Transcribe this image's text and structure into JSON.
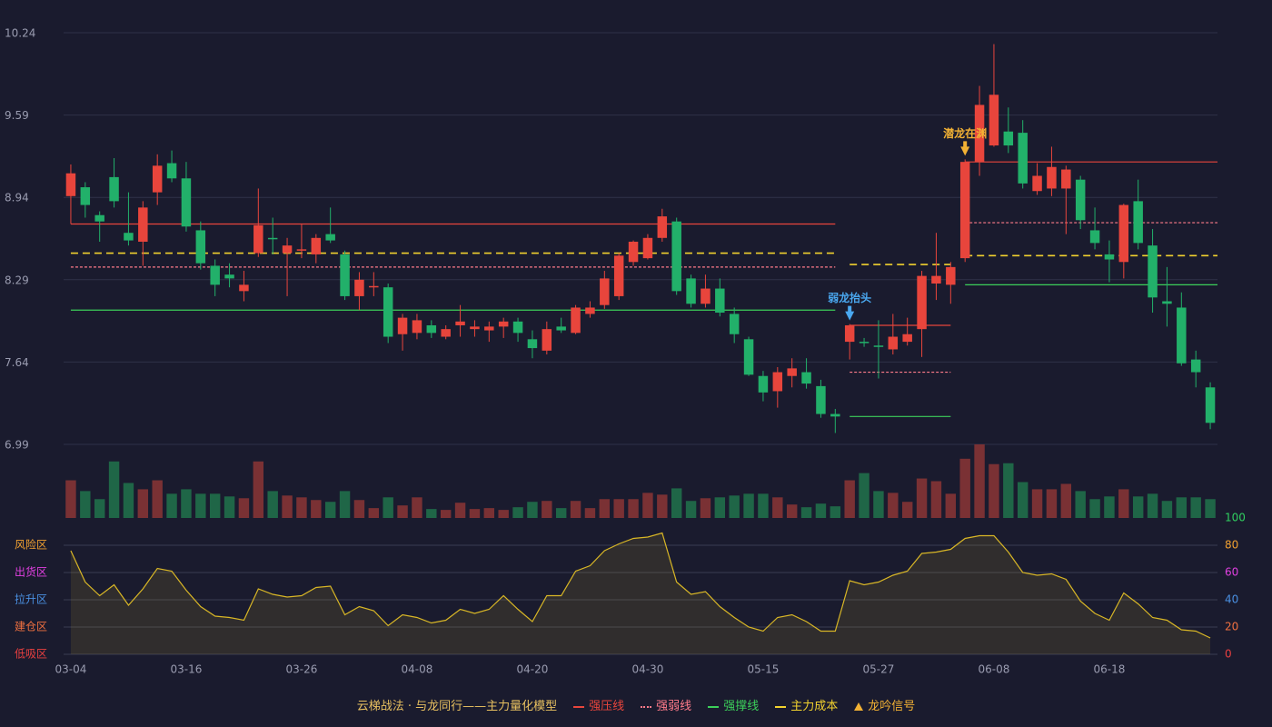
{
  "chart_data": {
    "type": "candlestick",
    "categories": [
      "03-04",
      null,
      null,
      null,
      null,
      null,
      null,
      null,
      "03-16",
      null,
      null,
      null,
      null,
      null,
      null,
      null,
      "03-26",
      null,
      null,
      null,
      null,
      null,
      null,
      null,
      "04-08",
      null,
      null,
      null,
      null,
      null,
      null,
      null,
      "04-20",
      null,
      null,
      null,
      null,
      null,
      null,
      null,
      "04-30",
      null,
      null,
      null,
      null,
      null,
      null,
      null,
      "05-15",
      null,
      null,
      null,
      null,
      null,
      null,
      null,
      "05-27",
      null,
      null,
      null,
      null,
      null,
      null,
      null,
      "06-08",
      null,
      null,
      null,
      null,
      null,
      null,
      null,
      "06-18",
      null,
      null,
      null,
      null,
      null,
      null,
      null
    ],
    "open": [
      8.95,
      9.02,
      8.8,
      9.1,
      8.66,
      8.59,
      8.98,
      9.21,
      9.09,
      8.68,
      8.4,
      8.33,
      8.2,
      8.5,
      8.62,
      8.5,
      8.52,
      8.49,
      8.65,
      8.49,
      8.16,
      8.23,
      8.23,
      7.86,
      7.87,
      7.93,
      7.84,
      7.93,
      7.9,
      7.89,
      7.92,
      7.96,
      7.82,
      7.73,
      7.92,
      7.87,
      8.02,
      8.09,
      8.16,
      8.43,
      8.46,
      8.62,
      8.75,
      8.3,
      8.1,
      8.22,
      8.02,
      7.82,
      7.53,
      7.41,
      7.53,
      7.56,
      7.45,
      7.23,
      7.8,
      7.8,
      7.77,
      7.74,
      7.8,
      7.9,
      8.26,
      8.25,
      8.46,
      9.22,
      9.35,
      9.46,
      9.45,
      8.99,
      9.01,
      9.01,
      9.08,
      8.68,
      8.49,
      8.43,
      8.91,
      8.56,
      8.12,
      8.07,
      7.66,
      7.44
    ],
    "high": [
      9.2,
      9.06,
      8.83,
      9.25,
      8.98,
      8.91,
      9.28,
      9.31,
      9.22,
      8.75,
      8.45,
      8.42,
      8.36,
      9.01,
      8.78,
      8.62,
      8.73,
      8.65,
      8.86,
      8.52,
      8.35,
      8.35,
      8.26,
      8.02,
      8.02,
      7.97,
      7.93,
      8.09,
      7.97,
      7.96,
      7.99,
      7.99,
      7.89,
      7.96,
      7.99,
      8.09,
      8.12,
      8.36,
      8.5,
      8.6,
      8.65,
      8.85,
      8.78,
      8.33,
      8.33,
      8.3,
      8.07,
      7.84,
      7.57,
      7.6,
      7.67,
      7.67,
      7.5,
      7.27,
      7.94,
      7.83,
      7.97,
      8.02,
      7.99,
      8.36,
      8.66,
      8.43,
      9.24,
      9.82,
      10.15,
      9.65,
      9.55,
      9.21,
      9.34,
      9.19,
      9.11,
      8.86,
      8.6,
      8.89,
      9.08,
      8.69,
      8.39,
      8.19,
      7.73,
      7.48
    ],
    "low": [
      8.73,
      8.78,
      8.59,
      8.86,
      8.56,
      8.4,
      8.88,
      9.06,
      8.67,
      8.37,
      8.16,
      8.23,
      8.12,
      8.47,
      8.49,
      8.16,
      8.46,
      8.42,
      8.58,
      8.13,
      8.05,
      8.16,
      7.79,
      7.73,
      7.82,
      7.83,
      7.82,
      7.84,
      7.84,
      7.8,
      7.83,
      7.8,
      7.67,
      7.7,
      7.87,
      7.86,
      7.99,
      8.06,
      8.13,
      8.4,
      8.45,
      8.59,
      8.17,
      8.07,
      8.07,
      8.0,
      7.79,
      7.53,
      7.33,
      7.28,
      7.44,
      7.43,
      7.2,
      7.08,
      7.66,
      7.76,
      7.51,
      7.7,
      7.77,
      7.68,
      8.13,
      8.1,
      8.43,
      9.11,
      9.34,
      9.29,
      9.01,
      8.96,
      8.95,
      8.65,
      8.69,
      8.53,
      8.27,
      8.3,
      8.53,
      8.03,
      7.92,
      7.61,
      7.44,
      7.11
    ],
    "close": [
      9.13,
      8.88,
      8.75,
      8.91,
      8.6,
      8.86,
      9.19,
      9.09,
      8.71,
      8.42,
      8.25,
      8.3,
      8.25,
      8.72,
      8.61,
      8.56,
      8.53,
      8.62,
      8.6,
      8.16,
      8.29,
      8.24,
      7.84,
      7.99,
      7.97,
      7.87,
      7.9,
      7.96,
      7.92,
      7.92,
      7.96,
      7.87,
      7.75,
      7.9,
      7.89,
      8.07,
      8.07,
      8.3,
      8.48,
      8.59,
      8.62,
      8.79,
      8.2,
      8.1,
      8.22,
      8.03,
      7.86,
      7.54,
      7.4,
      7.56,
      7.59,
      7.47,
      7.23,
      7.21,
      7.93,
      7.79,
      7.76,
      7.84,
      7.86,
      8.32,
      8.32,
      8.39,
      9.22,
      9.67,
      9.75,
      9.35,
      9.05,
      9.11,
      9.18,
      9.16,
      8.76,
      8.58,
      8.45,
      8.88,
      8.58,
      8.15,
      8.1,
      7.63,
      7.56,
      7.16
    ],
    "volume": [
      42,
      30,
      21,
      63,
      39,
      32,
      42,
      27,
      32,
      27,
      27,
      24,
      22,
      63,
      30,
      25,
      23,
      20,
      18,
      30,
      20,
      11,
      23,
      14,
      23,
      10,
      9,
      17,
      10,
      11,
      9,
      12,
      18,
      19,
      11,
      19,
      11,
      21,
      21,
      21,
      28,
      26,
      33,
      19,
      22,
      23,
      25,
      27,
      27,
      23,
      15,
      12,
      16,
      13,
      42,
      50,
      30,
      28,
      18,
      44,
      41,
      27,
      66,
      82,
      60,
      61,
      40,
      32,
      32,
      38,
      30,
      21,
      24,
      32,
      24,
      27,
      19,
      23,
      23,
      21
    ],
    "indicator": [
      76,
      53,
      43,
      51,
      36,
      48,
      63,
      61,
      47,
      35,
      28,
      27,
      25,
      48,
      44,
      42,
      43,
      49,
      50,
      29,
      35,
      32,
      21,
      29,
      27,
      23,
      25,
      33,
      30,
      33,
      43,
      33,
      24,
      43,
      43,
      61,
      65,
      76,
      81,
      85,
      86,
      89,
      53,
      44,
      46,
      35,
      27,
      20,
      17,
      27,
      29,
      24,
      17,
      17,
      54,
      51,
      53,
      58,
      61,
      74,
      75,
      77,
      85,
      87,
      87,
      75,
      60,
      58,
      59,
      55,
      39,
      30,
      25,
      45,
      37,
      27,
      25,
      18,
      17,
      12
    ],
    "up_color": "#e8453c",
    "down_color": "#22b06a",
    "indicator_color": "#d9b726",
    "ylim": [
      6.99,
      10.24
    ],
    "yticks": [
      6.99,
      7.64,
      8.29,
      8.94,
      9.59,
      10.24
    ],
    "y2lim": [
      0,
      100
    ],
    "y2ticks": [
      0,
      20,
      40,
      60,
      80,
      100
    ],
    "y2tick_colors": [
      "#e84040",
      "#f07040",
      "#4a90e2",
      "#e040e0",
      "#f0a030",
      "#30d060"
    ],
    "zones": [
      {
        "value": 80,
        "label": "风险区",
        "color": "#f0a030"
      },
      {
        "value": 60,
        "label": "出货区",
        "color": "#e040e0"
      },
      {
        "value": 40,
        "label": "拉升区",
        "color": "#4a90e2"
      },
      {
        "value": 20,
        "label": "建仓区",
        "color": "#f07040"
      },
      {
        "value": 0,
        "label": "低吸区",
        "color": "#e84040"
      }
    ],
    "legend_title": "云梯战法 · 与龙同行——主力量化模型",
    "levels": [
      {
        "name": "强压线",
        "color": "#e8453c",
        "style": "solid",
        "segments": [
          {
            "start": 0,
            "end": 53,
            "value": 8.73
          },
          {
            "start": 54,
            "end": 61,
            "value": 7.93
          },
          {
            "start": 62,
            "end": 79,
            "value": 9.22
          }
        ]
      },
      {
        "name": "强弱线",
        "color": "#ff7b8a",
        "style": "dotted",
        "segments": [
          {
            "start": 0,
            "end": 53,
            "value": 8.39
          },
          {
            "start": 54,
            "end": 61,
            "value": 7.56
          },
          {
            "start": 62,
            "end": 79,
            "value": 8.74
          }
        ]
      },
      {
        "name": "强撑线",
        "color": "#3ccf5a",
        "style": "solid",
        "segments": [
          {
            "start": 0,
            "end": 53,
            "value": 8.05
          },
          {
            "start": 54,
            "end": 61,
            "value": 7.21
          },
          {
            "start": 62,
            "end": 79,
            "value": 8.25
          }
        ]
      },
      {
        "name": "主力成本",
        "color": "#f2d22e",
        "style": "dashed",
        "segments": [
          {
            "start": 0,
            "end": 53,
            "value": 8.5
          },
          {
            "start": 54,
            "end": 61,
            "value": 8.41
          },
          {
            "start": 62,
            "end": 79,
            "value": 8.48
          }
        ]
      }
    ],
    "signal_legend": {
      "name": "龙吟信号",
      "color": "#f2b134"
    },
    "signals": [
      {
        "index": 54,
        "text": "弱龙抬头",
        "color": "#4aa8f0"
      },
      {
        "index": 62,
        "text": "潜龙在渊",
        "color": "#f2b134"
      }
    ]
  }
}
